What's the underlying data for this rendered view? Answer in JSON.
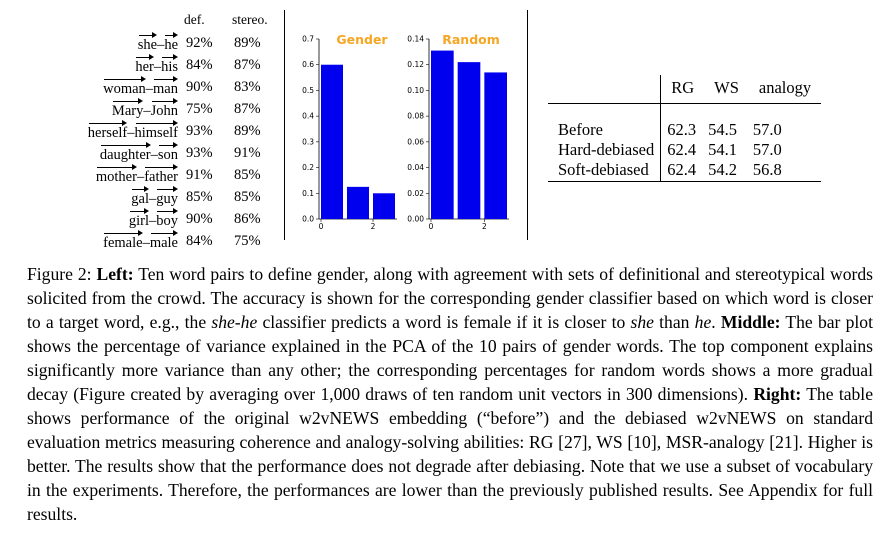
{
  "left_table": {
    "headers": [
      "def.",
      "stereo."
    ],
    "rows": [
      {
        "w1": "she",
        "w2": "he",
        "def": "92%",
        "stereo": "89%"
      },
      {
        "w1": "her",
        "w2": "his",
        "def": "84%",
        "stereo": "87%"
      },
      {
        "w1": "woman",
        "w2": "man",
        "def": "90%",
        "stereo": "83%"
      },
      {
        "w1": "Mary",
        "w2": "John",
        "def": "75%",
        "stereo": "87%"
      },
      {
        "w1": "herself",
        "w2": "himself",
        "def": "93%",
        "stereo": "89%"
      },
      {
        "w1": "daughter",
        "w2": "son",
        "def": "93%",
        "stereo": "91%"
      },
      {
        "w1": "mother",
        "w2": "father",
        "def": "91%",
        "stereo": "85%"
      },
      {
        "w1": "gal",
        "w2": "guy",
        "def": "85%",
        "stereo": "85%"
      },
      {
        "w1": "girl",
        "w2": "boy",
        "def": "90%",
        "stereo": "86%"
      },
      {
        "w1": "female",
        "w2": "male",
        "def": "84%",
        "stereo": "75%"
      }
    ]
  },
  "chart_data": [
    {
      "type": "bar",
      "title": "Gender",
      "x": [
        0,
        1,
        2
      ],
      "xticks": [
        0,
        2
      ],
      "values": [
        0.6,
        0.125,
        0.1
      ],
      "ylim": [
        0,
        0.7
      ],
      "yticks": [
        "0.0",
        "0.1",
        "0.2",
        "0.3",
        "0.4",
        "0.5",
        "0.6",
        "0.7"
      ],
      "bar_color": "#0000ee",
      "title_color": "#f5a623"
    },
    {
      "type": "bar",
      "title": "Random",
      "x": [
        0,
        1,
        2
      ],
      "xticks": [
        0,
        2
      ],
      "values": [
        0.131,
        0.122,
        0.114
      ],
      "ylim": [
        0,
        0.14
      ],
      "yticks": [
        "0.00",
        "0.02",
        "0.04",
        "0.06",
        "0.08",
        "0.10",
        "0.12",
        "0.14"
      ],
      "bar_color": "#0000ee",
      "title_color": "#f5a623"
    }
  ],
  "right_table": {
    "headers": [
      "RG",
      "WS",
      "analogy"
    ],
    "rows": [
      {
        "label": "Before",
        "values": [
          "62.3",
          "54.5",
          "57.0"
        ]
      },
      {
        "label": "Hard-debiased",
        "values": [
          "62.4",
          "54.1",
          "57.0"
        ]
      },
      {
        "label": "Soft-debiased",
        "values": [
          "62.4",
          "54.2",
          "56.8"
        ]
      }
    ]
  },
  "caption": {
    "prefix": "Figure 2: ",
    "left_label": "Left:",
    "text1": " Ten word pairs to define gender, along with agreement with sets of definitional and stereotypical words solicited from the crowd. The accuracy is shown for the corresponding gender classifier based on which word is closer to a target word, e.g., the ",
    "em1": "she-he",
    "text2": " classifier predicts a word is female if it is closer to ",
    "em2": "she",
    "text3": " than ",
    "em3": "he",
    "text4": ". ",
    "middle_label": "Middle:",
    "text5": " The bar plot shows the percentage of variance explained in the PCA of the 10 pairs of gender words. The top component explains significantly more variance than any other; the corresponding percentages for random words shows a more gradual decay (Figure created by averaging over 1,000 draws of ten random unit vectors in 300 dimensions). ",
    "right_label": "Right:",
    "text6": " The table shows performance of the original w2vNEWS embedding (“before”) and the debiased w2vNEWS on standard evaluation metrics measuring coherence and analogy-solving abilities: RG [27], WS [10], MSR-analogy [21]. Higher is better. The results show that the performance does not degrade after debiasing. Note that we use a subset of vocabulary in the experiments. Therefore, the performances are lower than the previously published results. See Appendix for full results."
  }
}
